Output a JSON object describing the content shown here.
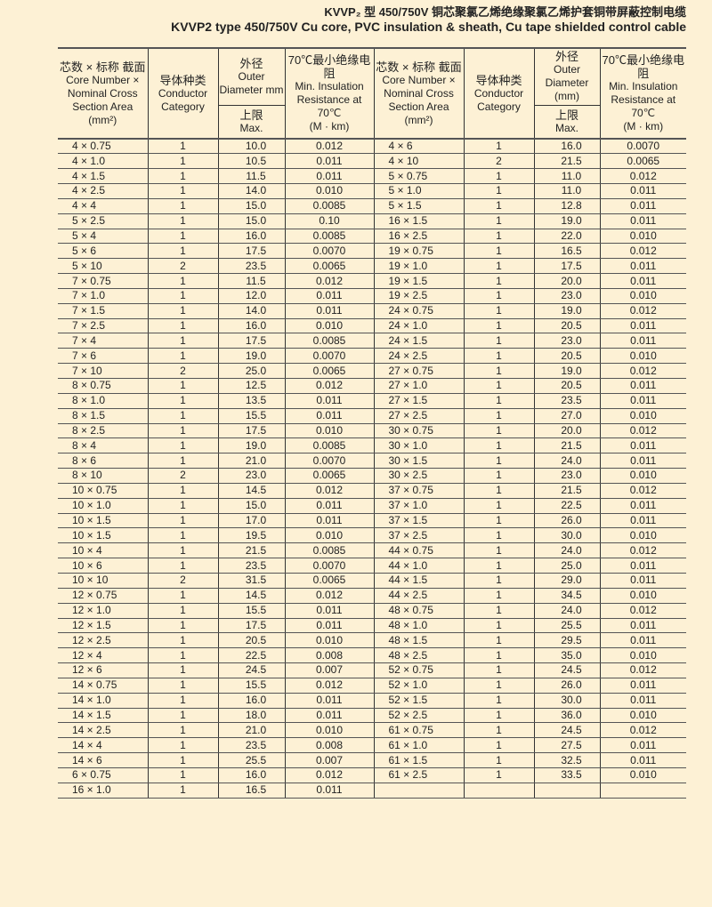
{
  "title": {
    "cn": "KVVP₂ 型 450/750V 铜芯聚氯乙烯绝缘聚氯乙烯护套铜带屏蔽控制电缆",
    "en": "KVVP2 type 450/750V Cu core, PVC insulation & sheath, Cu tape shielded control cable"
  },
  "headers": {
    "core_cn": "芯数 × 标称 截面",
    "core_en": "Core Number × Nominal Cross Section Area (mm²)",
    "cond_cn": "导体种类",
    "cond_en": "Conductor Category",
    "od_cn": "外径",
    "od_en": "Outer Diameter mm",
    "od_en_right": "Outer Diameter (mm)",
    "max_cn": "上限",
    "max_en": "Max.",
    "res_cn": "70℃最小绝缘电阻",
    "res_en": "Min. Insulation Resistance at 70℃",
    "res_unit": "(M · km)"
  },
  "left_rows": [
    [
      "4 × 0.75",
      "1",
      "10.0",
      "0.012"
    ],
    [
      "4 × 1.0",
      "1",
      "10.5",
      "0.011"
    ],
    [
      "4 × 1.5",
      "1",
      "11.5",
      "0.011"
    ],
    [
      "4 × 2.5",
      "1",
      "14.0",
      "0.010"
    ],
    [
      "4 × 4",
      "1",
      "15.0",
      "0.0085"
    ],
    [
      "5 × 2.5",
      "1",
      "15.0",
      "0.10"
    ],
    [
      "5 × 4",
      "1",
      "16.0",
      "0.0085"
    ],
    [
      "5 × 6",
      "1",
      "17.5",
      "0.0070"
    ],
    [
      "5 × 10",
      "2",
      "23.5",
      "0.0065"
    ],
    [
      "7 × 0.75",
      "1",
      "11.5",
      "0.012"
    ],
    [
      "7 × 1.0",
      "1",
      "12.0",
      "0.011"
    ],
    [
      "7 × 1.5",
      "1",
      "14.0",
      "0.011"
    ],
    [
      "7 × 2.5",
      "1",
      "16.0",
      "0.010"
    ],
    [
      "7 × 4",
      "1",
      "17.5",
      "0.0085"
    ],
    [
      "7 × 6",
      "1",
      "19.0",
      "0.0070"
    ],
    [
      "7 × 10",
      "2",
      "25.0",
      "0.0065"
    ],
    [
      "8 × 0.75",
      "1",
      "12.5",
      "0.012"
    ],
    [
      "8 × 1.0",
      "1",
      "13.5",
      "0.011"
    ],
    [
      "8 × 1.5",
      "1",
      "15.5",
      "0.011"
    ],
    [
      "8 × 2.5",
      "1",
      "17.5",
      "0.010"
    ],
    [
      "8 × 4",
      "1",
      "19.0",
      "0.0085"
    ],
    [
      "8 × 6",
      "1",
      "21.0",
      "0.0070"
    ],
    [
      "8 × 10",
      "2",
      "23.0",
      "0.0065"
    ],
    [
      "10 × 0.75",
      "1",
      "14.5",
      "0.012"
    ],
    [
      "10 × 1.0",
      "1",
      "15.0",
      "0.011"
    ],
    [
      "10 × 1.5",
      "1",
      "17.0",
      "0.011"
    ],
    [
      "10 × 1.5",
      "1",
      "19.5",
      "0.010"
    ],
    [
      "10 × 4",
      "1",
      "21.5",
      "0.0085"
    ],
    [
      "10 × 6",
      "1",
      "23.5",
      "0.0070"
    ],
    [
      "10 × 10",
      "2",
      "31.5",
      "0.0065"
    ],
    [
      "12 × 0.75",
      "1",
      "14.5",
      "0.012"
    ],
    [
      "12 × 1.0",
      "1",
      "15.5",
      "0.011"
    ],
    [
      "12 × 1.5",
      "1",
      "17.5",
      "0.011"
    ],
    [
      "12 × 2.5",
      "1",
      "20.5",
      "0.010"
    ],
    [
      "12 × 4",
      "1",
      "22.5",
      "0.008"
    ],
    [
      "12 × 6",
      "1",
      "24.5",
      "0.007"
    ],
    [
      "14 × 0.75",
      "1",
      "15.5",
      "0.012"
    ],
    [
      "14 × 1.0",
      "1",
      "16.0",
      "0.011"
    ],
    [
      "14 × 1.5",
      "1",
      "18.0",
      "0.011"
    ],
    [
      "14 × 2.5",
      "1",
      "21.0",
      "0.010"
    ],
    [
      "14 × 4",
      "1",
      "23.5",
      "0.008"
    ],
    [
      "14 × 6",
      "1",
      "25.5",
      "0.007"
    ],
    [
      "6 × 0.75",
      "1",
      "16.0",
      "0.012"
    ],
    [
      "16 × 1.0",
      "1",
      "16.5",
      "0.011"
    ]
  ],
  "right_rows": [
    [
      "4 × 6",
      "1",
      "16.0",
      "0.0070"
    ],
    [
      "4 × 10",
      "2",
      "21.5",
      "0.0065"
    ],
    [
      "5 × 0.75",
      "1",
      "11.0",
      "0.012"
    ],
    [
      "5 × 1.0",
      "1",
      "11.0",
      "0.011"
    ],
    [
      "5 × 1.5",
      "1",
      "12.8",
      "0.011"
    ],
    [
      "16 × 1.5",
      "1",
      "19.0",
      "0.011"
    ],
    [
      "16 × 2.5",
      "1",
      "22.0",
      "0.010"
    ],
    [
      "19 × 0.75",
      "1",
      "16.5",
      "0.012"
    ],
    [
      "19 × 1.0",
      "1",
      "17.5",
      "0.011"
    ],
    [
      "19 × 1.5",
      "1",
      "20.0",
      "0.011"
    ],
    [
      "19 × 2.5",
      "1",
      "23.0",
      "0.010"
    ],
    [
      "24 × 0.75",
      "1",
      "19.0",
      "0.012"
    ],
    [
      "24 × 1.0",
      "1",
      "20.5",
      "0.011"
    ],
    [
      "24 × 1.5",
      "1",
      "23.0",
      "0.011"
    ],
    [
      "24 × 2.5",
      "1",
      "20.5",
      "0.010"
    ],
    [
      "27 × 0.75",
      "1",
      "19.0",
      "0.012"
    ],
    [
      "27 × 1.0",
      "1",
      "20.5",
      "0.011"
    ],
    [
      "27 × 1.5",
      "1",
      "23.5",
      "0.011"
    ],
    [
      "27 × 2.5",
      "1",
      "27.0",
      "0.010"
    ],
    [
      "30 × 0.75",
      "1",
      "20.0",
      "0.012"
    ],
    [
      "30 × 1.0",
      "1",
      "21.5",
      "0.011"
    ],
    [
      "30 × 1.5",
      "1",
      "24.0",
      "0.011"
    ],
    [
      "30 × 2.5",
      "1",
      "23.0",
      "0.010"
    ],
    [
      "37 × 0.75",
      "1",
      "21.5",
      "0.012"
    ],
    [
      "37 × 1.0",
      "1",
      "22.5",
      "0.011"
    ],
    [
      "37 × 1.5",
      "1",
      "26.0",
      "0.011"
    ],
    [
      "37 × 2.5",
      "1",
      "30.0",
      "0.010"
    ],
    [
      "44 × 0.75",
      "1",
      "24.0",
      "0.012"
    ],
    [
      "44 × 1.0",
      "1",
      "25.0",
      "0.011"
    ],
    [
      "44 × 1.5",
      "1",
      "29.0",
      "0.011"
    ],
    [
      "44 × 2.5",
      "1",
      "34.5",
      "0.010"
    ],
    [
      "48 × 0.75",
      "1",
      "24.0",
      "0.012"
    ],
    [
      "48 × 1.0",
      "1",
      "25.5",
      "0.011"
    ],
    [
      "48 × 1.5",
      "1",
      "29.5",
      "0.011"
    ],
    [
      "48 × 2.5",
      "1",
      "35.0",
      "0.010"
    ],
    [
      "52 × 0.75",
      "1",
      "24.5",
      "0.012"
    ],
    [
      "52 × 1.0",
      "1",
      "26.0",
      "0.011"
    ],
    [
      "52 × 1.5",
      "1",
      "30.0",
      "0.011"
    ],
    [
      "52 × 2.5",
      "1",
      "36.0",
      "0.010"
    ],
    [
      "61 × 0.75",
      "1",
      "24.5",
      "0.012"
    ],
    [
      "61 × 1.0",
      "1",
      "27.5",
      "0.011"
    ],
    [
      "61 × 1.5",
      "1",
      "32.5",
      "0.011"
    ],
    [
      "61 × 2.5",
      "1",
      "33.5",
      "0.010"
    ]
  ]
}
